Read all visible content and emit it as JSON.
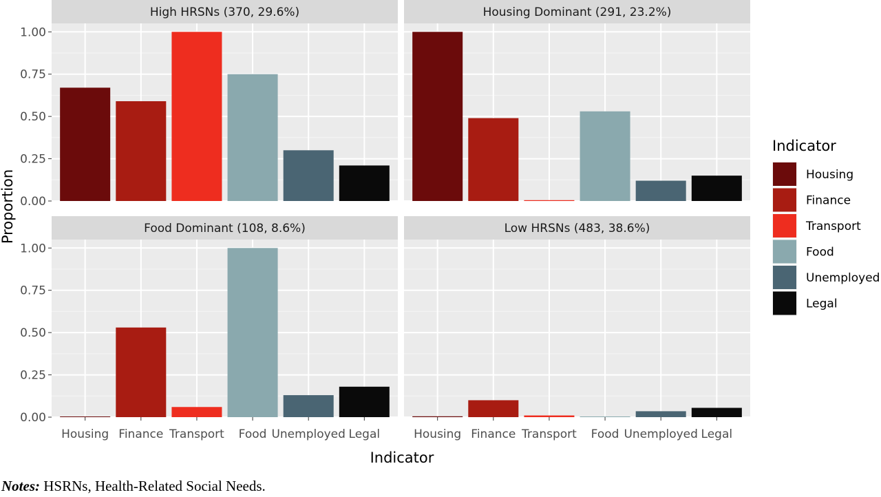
{
  "chart_data": {
    "type": "bar",
    "xlabel": "Indicator",
    "ylabel": "Proportion",
    "ylim": [
      0,
      1.05
    ],
    "yticks": [
      "0.00",
      "0.25",
      "0.50",
      "0.75",
      "1.00"
    ],
    "categories": [
      "Housing",
      "Finance",
      "Transport",
      "Food",
      "Unemployed",
      "Legal"
    ],
    "colors": [
      "#6b0b0b",
      "#a81c12",
      "#ee2d1f",
      "#8aa9ae",
      "#4a6573",
      "#0a0a0a"
    ],
    "legend": {
      "title": "Indicator",
      "position": "right"
    },
    "grid": true,
    "panels": [
      {
        "title": "High HRSNs (370, 29.6%)",
        "values": [
          0.67,
          0.59,
          1.0,
          0.75,
          0.3,
          0.21
        ]
      },
      {
        "title": "Housing Dominant (291, 23.2%)",
        "values": [
          1.0,
          0.49,
          0.005,
          0.53,
          0.12,
          0.15
        ]
      },
      {
        "title": "Food Dominant (108, 8.6%)",
        "values": [
          0.003,
          0.53,
          0.06,
          1.0,
          0.13,
          0.18
        ]
      },
      {
        "title": "Low HRSNs (483, 38.6%)",
        "values": [
          0.005,
          0.1,
          0.01,
          0.003,
          0.035,
          0.055
        ]
      }
    ]
  },
  "notes": {
    "label": "Notes:",
    "text": " HSRNs, Health-Related Social Needs."
  }
}
